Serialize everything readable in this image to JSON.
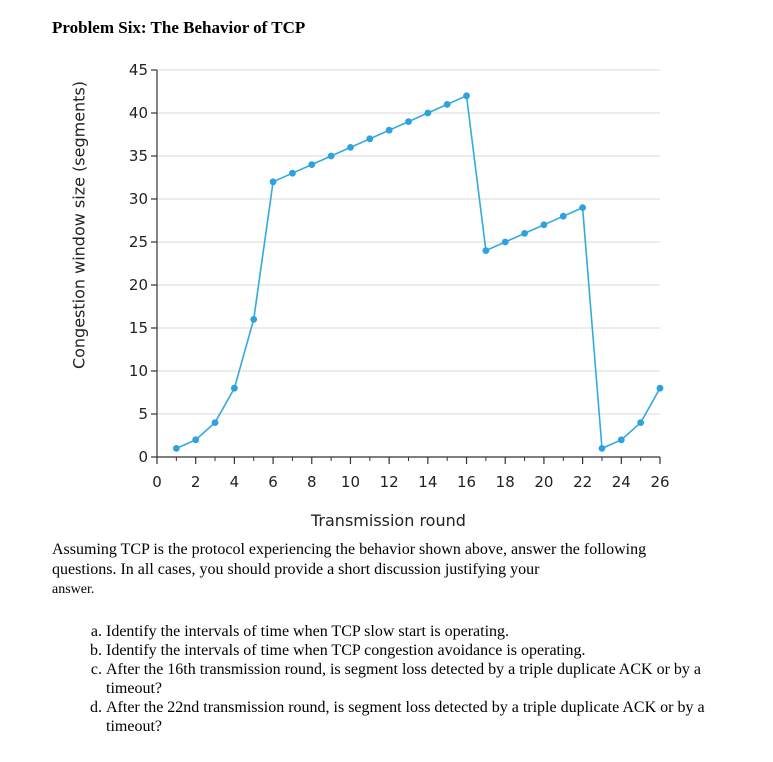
{
  "document": {
    "title": "Problem Six: The Behavior of TCP",
    "intro_line1": "Assuming TCP is the protocol experiencing the behavior shown above, answer the following questions. In all cases, you should provide a short discussion justifying your",
    "intro_line2": "answer.",
    "questions": [
      "Identify the intervals of time when TCP slow start is operating.",
      "Identify the intervals of time when TCP congestion avoidance is operating.",
      "After the 16th transmission round, is segment loss detected by a triple duplicate ACK or by a timeout?",
      "After the 22nd transmission round, is segment loss detected by a triple duplicate ACK or by a timeout?"
    ]
  },
  "colors": {
    "series": "#33aadd",
    "marker": "#2ea2de",
    "grid": "#d8d8d8",
    "axis": "#333333"
  },
  "chart_data": {
    "type": "line",
    "xlabel": "Transmission round",
    "ylabel": "Congestion window size (segments)",
    "xlim": [
      0,
      26
    ],
    "ylim": [
      0,
      45
    ],
    "x_ticks": [
      0,
      2,
      4,
      6,
      8,
      10,
      12,
      14,
      16,
      18,
      20,
      22,
      24,
      26
    ],
    "y_ticks": [
      0,
      5,
      10,
      15,
      20,
      25,
      30,
      35,
      40,
      45
    ],
    "grid": "horizontal",
    "series": [
      {
        "x": [
          1,
          2,
          3,
          4,
          5,
          6,
          7,
          8,
          9,
          10,
          11,
          12,
          13,
          14,
          15,
          16,
          17,
          18,
          19,
          20,
          21,
          22,
          23,
          24,
          25,
          26
        ],
        "values": [
          1,
          2,
          4,
          8,
          16,
          32,
          33,
          34,
          35,
          36,
          37,
          38,
          39,
          40,
          41,
          42,
          24,
          25,
          26,
          27,
          28,
          29,
          1,
          2,
          4,
          8
        ]
      }
    ]
  }
}
